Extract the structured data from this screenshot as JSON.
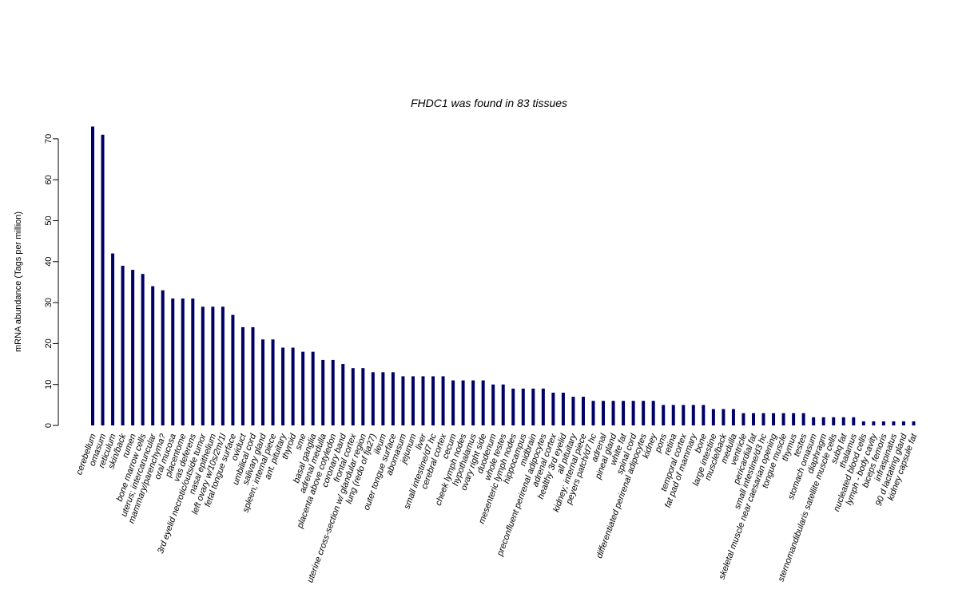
{
  "chart_data": {
    "type": "bar",
    "title": "FHDC1  was found in  83  tissues",
    "ylabel": "mRNA abundance (Tags per million)",
    "xlabel": "",
    "ylim": [
      0,
      73
    ],
    "yticks": [
      0,
      10,
      20,
      30,
      40,
      50,
      60,
      70
    ],
    "bar_color": "#000066",
    "grid": false,
    "categories": [
      "cerebellum",
      "omasum",
      "reticulum",
      "skin/back",
      "rumen",
      "bone marrow cells",
      "uterus; intercaruncular",
      "mammary/parenchyma?",
      "oral mucosa",
      "placentome",
      "vas deferens",
      "3rd eyelid necrotic/outside tumor",
      "nasal epithelium",
      "left ovary w/10s/2m/1l",
      "fetal tongue surface",
      "oviduct",
      "umbilical cord",
      "salivary gland",
      "spleen; internal piece",
      "ant. pituitary",
      "thyroid",
      "sme",
      "basal ganglia",
      "adrenal medulla",
      "placenta above cotyledon",
      "coronary band",
      "frontal cortex",
      "uterine cross-section w/ glandular region",
      "lung (redo of fja27)",
      "ileum",
      "outer tongue surface",
      "abomasum",
      "jejunum",
      "liver",
      "small intestine/d7 hc",
      "cerebral cortex",
      "cecum",
      "cheek lymph nodes",
      "hypothalamus",
      "ovary right side",
      "duodenum",
      "whole testes",
      "mesenteric lymph nodes",
      "hippocampus",
      "midbrain",
      "preconfluent perirenal adipocytes",
      "adrenal cortex",
      "healthy 3rd eyelid",
      "all pituitary",
      "kidney; internal piece",
      "peyers patch/d7 hc",
      "adrenal",
      "pineal gland",
      "white fat",
      "spinal cord",
      "differentiated perirenal adipocytes",
      "kidney",
      "pons",
      "retina",
      "temporal cortex",
      "fat pad of mammary",
      "bone",
      "large intestine",
      "muscle/back",
      "medulla",
      "ventricle",
      "pericardial fat",
      "small intestine/d3 hc",
      "skeletal muscle near caesarian opening",
      "tongue muscle",
      "thymus",
      "testes",
      "stomach omasum",
      "diaphragm",
      "sternomandibularis satellite muscle cells",
      "subq fat",
      "thalamus",
      "nucleated blood cells",
      "lymph - body cavity",
      "biceps femoris",
      "infraspinatus",
      "90 d lactating gland",
      "kidney capsule fat"
    ],
    "values": [
      73,
      71,
      42,
      39,
      38,
      37,
      34,
      33,
      31,
      31,
      31,
      29,
      29,
      29,
      27,
      24,
      24,
      21,
      21,
      19,
      19,
      18,
      18,
      16,
      16,
      15,
      14,
      14,
      13,
      13,
      13,
      12,
      12,
      12,
      12,
      12,
      11,
      11,
      11,
      11,
      10,
      10,
      9,
      9,
      9,
      9,
      8,
      8,
      7,
      7,
      6,
      6,
      6,
      6,
      6,
      6,
      6,
      5,
      5,
      5,
      5,
      5,
      4,
      4,
      4,
      3,
      3,
      3,
      3,
      3,
      3,
      3,
      2,
      2,
      2,
      2,
      2,
      1,
      1,
      1,
      1,
      1,
      1
    ]
  }
}
